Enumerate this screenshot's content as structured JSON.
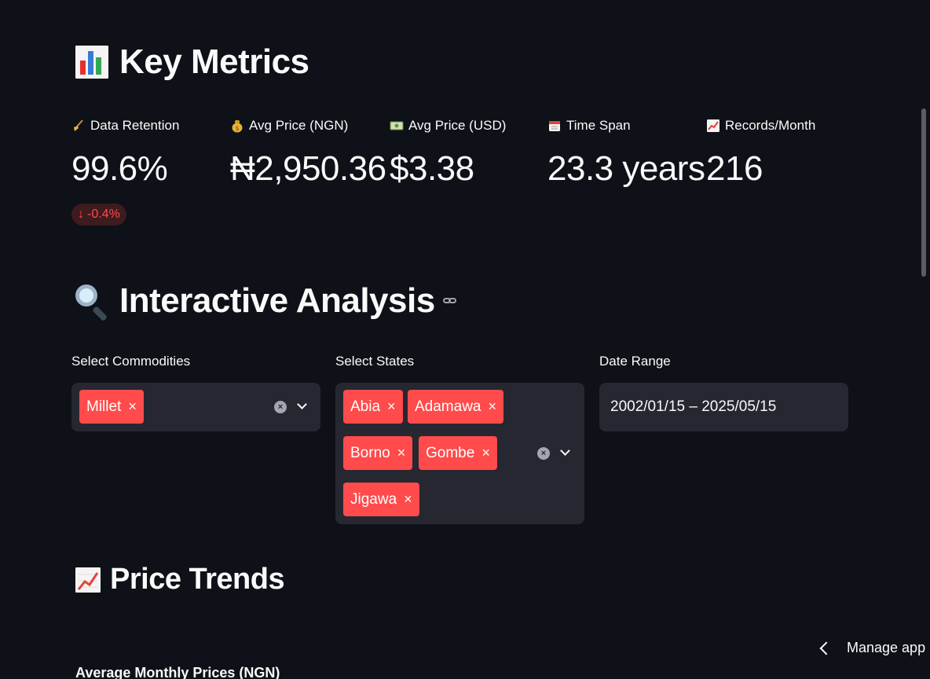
{
  "key_metrics": {
    "title": "Key Metrics",
    "icon": "bar-chart-icon",
    "metrics": [
      {
        "icon": "broom-icon",
        "label": "Data Retention",
        "value": "99.6%",
        "delta": "-0.4%"
      },
      {
        "icon": "money-bag-icon",
        "label": "Avg Price (NGN)",
        "value": "₦2,950.36"
      },
      {
        "icon": "banknote-icon",
        "label": "Avg Price (USD)",
        "value": "$3.38"
      },
      {
        "icon": "calendar-icon",
        "label": "Time Span",
        "value": "23.3 years"
      },
      {
        "icon": "trend-chart-icon",
        "label": "Records/Month",
        "value": "216"
      }
    ]
  },
  "interactive": {
    "title": "Interactive Analysis",
    "icon": "magnifier-icon",
    "commodities": {
      "label": "Select Commodities",
      "selected": [
        "Millet"
      ]
    },
    "states": {
      "label": "Select States",
      "selected": [
        "Abia",
        "Adamawa",
        "Borno",
        "Gombe",
        "Jigawa"
      ]
    },
    "date_range": {
      "label": "Date Range",
      "value": "2002/01/15 – 2025/05/15"
    }
  },
  "price_trends": {
    "title": "Price Trends",
    "icon": "trend-chart-icon",
    "chart_subtitle": "Average Monthly Prices (NGN)"
  },
  "manage_app": {
    "label": "Manage app"
  },
  "colors": {
    "background": "#0e1117",
    "widget": "#262730",
    "accent": "#ff4b4b"
  }
}
